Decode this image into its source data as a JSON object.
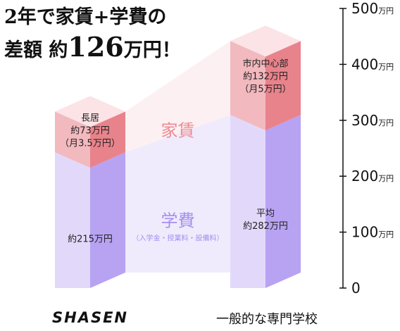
{
  "headline": {
    "line1": "2年で家賃+学費の",
    "line2_prefix": "差額 約",
    "line2_number": "126",
    "line2_suffix": "万円！"
  },
  "chart_data": {
    "type": "bar",
    "stacked": true,
    "categories": [
      "SHASEN",
      "一般的な専門学校"
    ],
    "series": [
      {
        "name": "学費",
        "values": [
          215,
          282
        ]
      },
      {
        "name": "家賃",
        "values": [
          73,
          132
        ]
      }
    ],
    "ylim": [
      0,
      500
    ],
    "y_ticks": [
      {
        "value": 0,
        "label": "0",
        "unit": ""
      },
      {
        "value": 100,
        "label": "100",
        "unit": "万円"
      },
      {
        "value": 200,
        "label": "200",
        "unit": "万円"
      },
      {
        "value": 300,
        "label": "300",
        "unit": "万円"
      },
      {
        "value": 400,
        "label": "400",
        "unit": "万円"
      },
      {
        "value": 500,
        "label": "500",
        "unit": "万円"
      }
    ],
    "band_labels": {
      "rent": "家賃",
      "tuition": "学費",
      "tuition_note": "（入学金・授業料・設備料）"
    },
    "bar_labels": {
      "shasen_rent": [
        "長居",
        "約73万円",
        "（月3.5万円）"
      ],
      "shasen_tuition": [
        "約215万円"
      ],
      "general_rent": [
        "市内中心部",
        "約132万円",
        "（月5万円）"
      ],
      "general_tuition": [
        "平均",
        "約282万円"
      ]
    },
    "colors": {
      "rent_front": "#f2b9bf",
      "rent_side": "#e8838b",
      "rent_top": "#fbe3e6",
      "tuition_front": "#e2d9fa",
      "tuition_side": "#b8a2f2",
      "rent_band": "#fdf0f2",
      "tuition_band": "#efebfc",
      "rent_band_text": "#ec8a92",
      "tuition_band_text": "#a68ff0"
    }
  }
}
